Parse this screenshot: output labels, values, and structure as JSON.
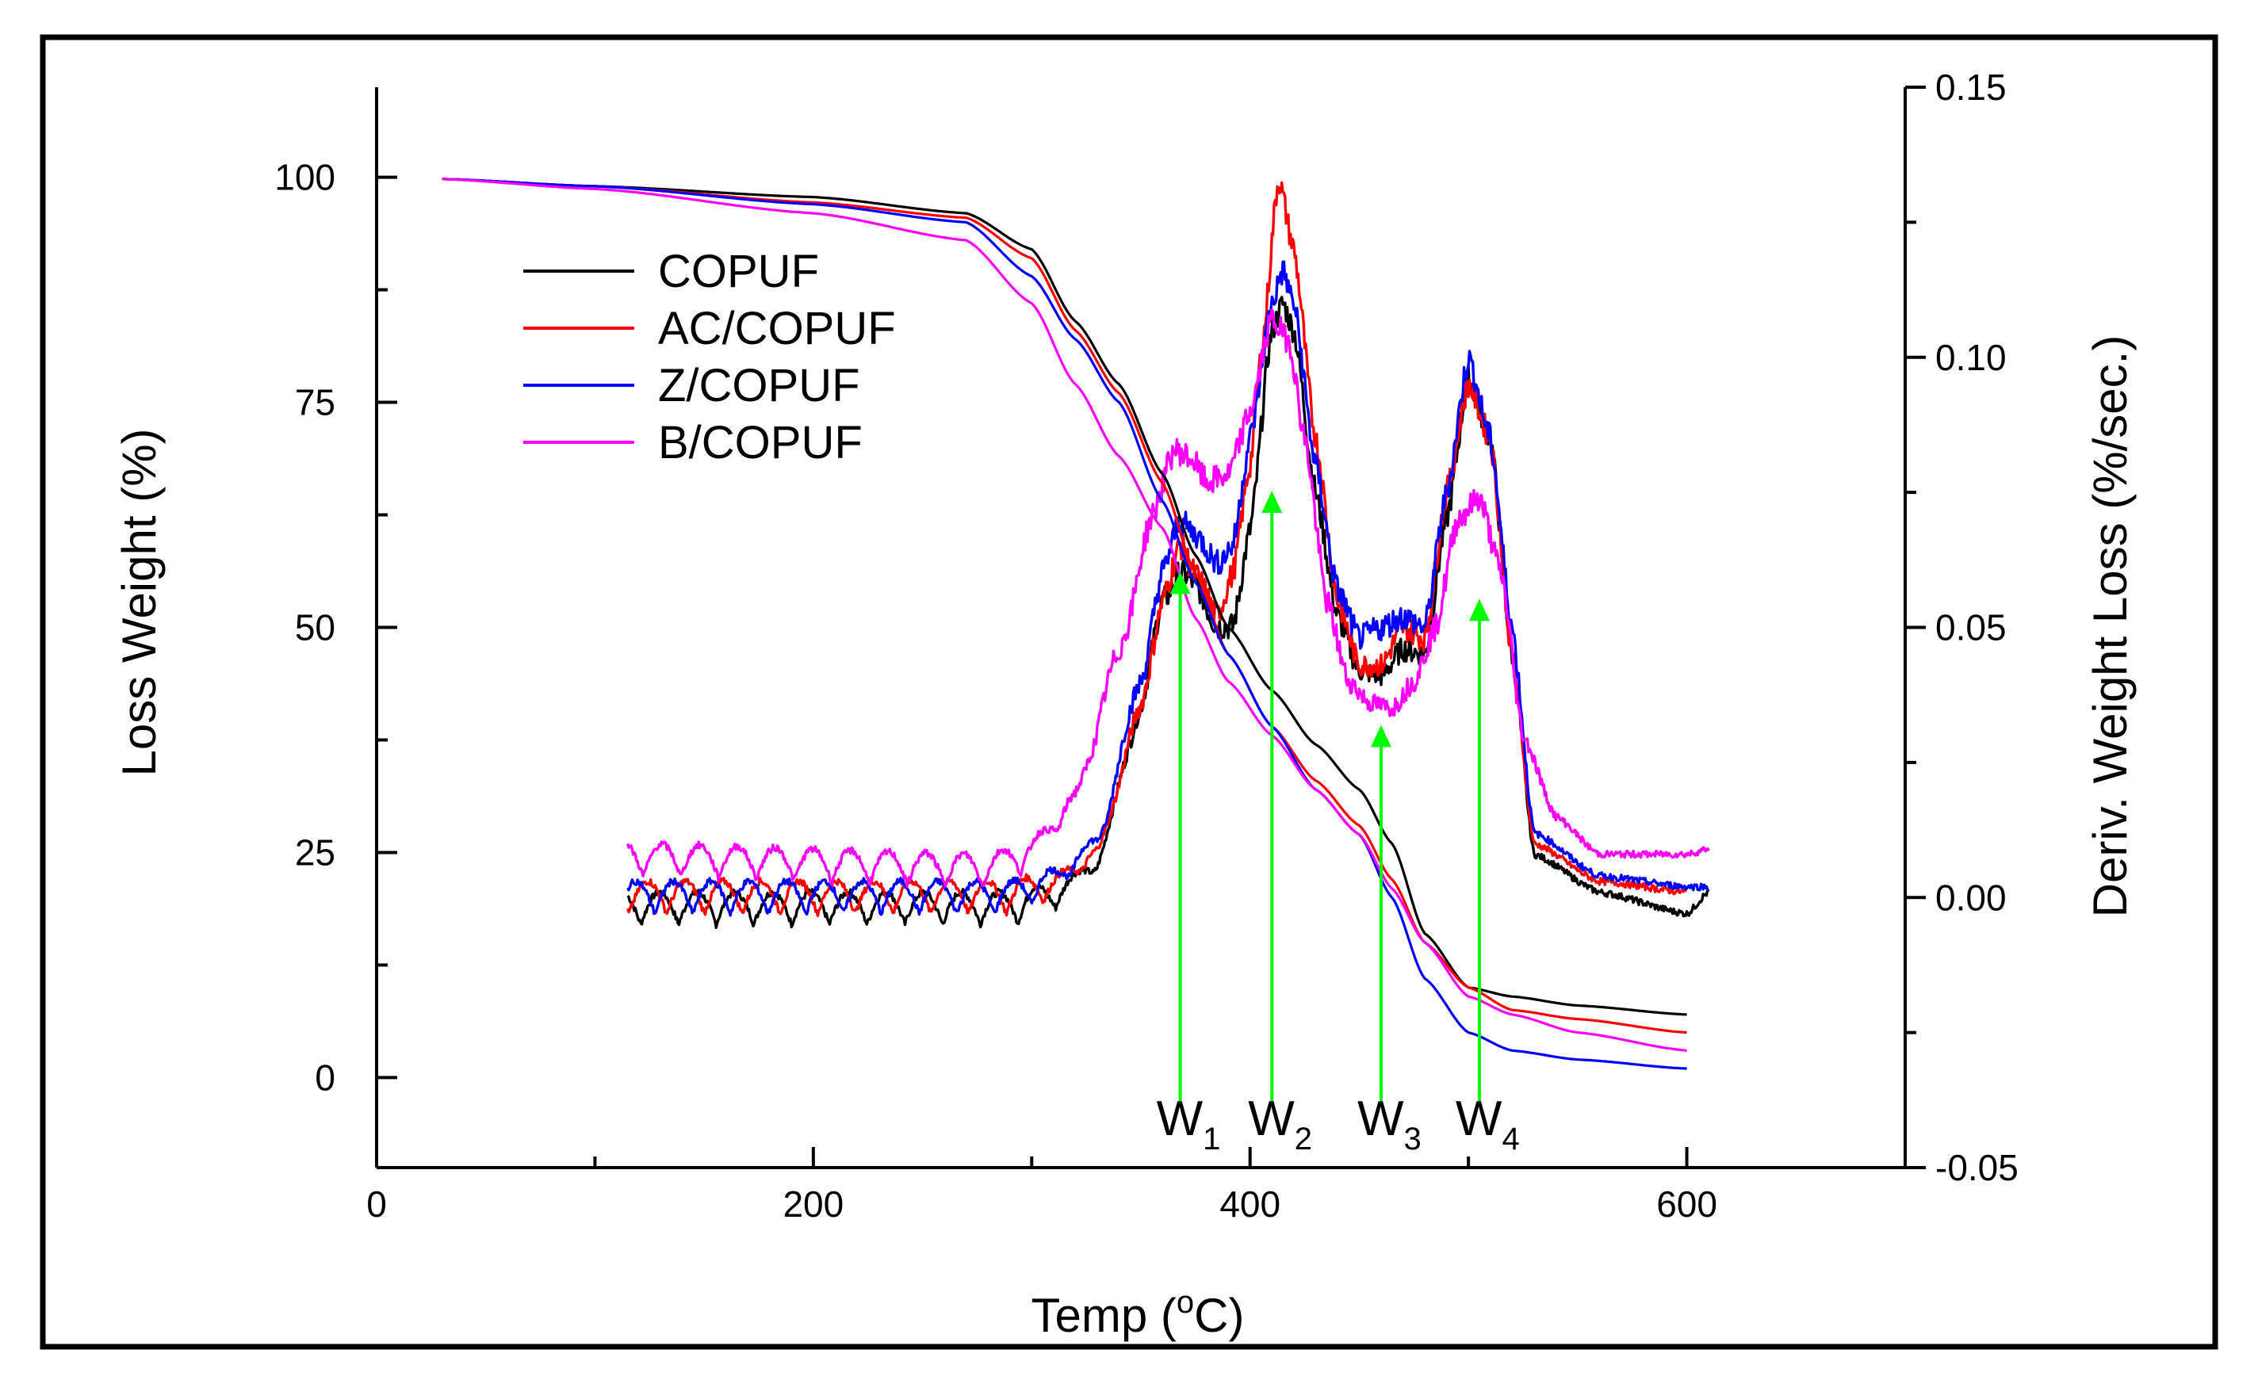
{
  "chart_data": {
    "type": "line",
    "title": "",
    "xlabel": "Temp (°C)",
    "xlabel_parts": {
      "pre": "Temp (",
      "sup": "o",
      "post": "C)"
    },
    "ylabel": "Loss Weight (%)",
    "y2label": "Deriv. Weight Loss (%/sec.)",
    "xlim": [
      0,
      700
    ],
    "ylim": [
      -10,
      110
    ],
    "y2lim": [
      -0.05,
      0.15
    ],
    "xticks": [
      0,
      200,
      400,
      600
    ],
    "xtick_labels": [
      "0",
      "200",
      "400",
      "600"
    ],
    "yticks": [
      0,
      25,
      50,
      75,
      100
    ],
    "ytick_labels": [
      "0",
      "25",
      "50",
      "75",
      "100"
    ],
    "y2ticks": [
      -0.05,
      0.0,
      0.05,
      0.1,
      0.15
    ],
    "y2tick_labels": [
      "-0.05",
      "0.00",
      "0.05",
      "0.10",
      "0.15"
    ],
    "legend": [
      "COPUF",
      "AC/COPUF",
      "Z/COPUF",
      "B/COPUF"
    ],
    "legend_position": "top-left",
    "colors": {
      "COPUF": "#000000",
      "AC/COPUF": "#ff0000",
      "Z/COPUF": "#0000ff",
      "B/COPUF": "#ff00ff",
      "arrow": "#00ff00"
    },
    "tga_series": [
      {
        "name": "COPUF",
        "x": [
          30,
          100,
          200,
          270,
          300,
          320,
          340,
          360,
          375,
          390,
          410,
          430,
          450,
          465,
          480,
          500,
          520,
          550,
          600
        ],
        "y": [
          99.8,
          99,
          97.8,
          96,
          92,
          84,
          77,
          67,
          58,
          50,
          43,
          37,
          32,
          26,
          16,
          10,
          9,
          8,
          7
        ]
      },
      {
        "name": "AC/COPUF",
        "x": [
          30,
          100,
          200,
          270,
          300,
          320,
          340,
          360,
          375,
          390,
          410,
          430,
          450,
          465,
          480,
          500,
          520,
          550,
          600
        ],
        "y": [
          99.8,
          99,
          97.2,
          95.5,
          91,
          83,
          76,
          66,
          56,
          47,
          39,
          33,
          28,
          22,
          15,
          10,
          7.5,
          6.5,
          5
        ]
      },
      {
        "name": "Z/COPUF",
        "x": [
          30,
          100,
          200,
          270,
          300,
          320,
          340,
          360,
          375,
          390,
          410,
          430,
          450,
          465,
          480,
          500,
          520,
          550,
          600
        ],
        "y": [
          99.8,
          99,
          97,
          95,
          89,
          82,
          75,
          64,
          55,
          47,
          39,
          32,
          27,
          20,
          11,
          5,
          3,
          2,
          1
        ]
      },
      {
        "name": "B/COPUF",
        "x": [
          30,
          100,
          200,
          270,
          300,
          320,
          340,
          360,
          375,
          390,
          410,
          430,
          450,
          465,
          480,
          500,
          520,
          550,
          600
        ],
        "y": [
          99.8,
          98.7,
          96,
          93,
          86,
          77,
          69,
          61,
          51,
          44,
          38,
          32,
          27,
          21,
          15,
          9,
          7,
          5,
          3
        ]
      }
    ],
    "dtg_series": [
      {
        "name": "COPUF",
        "x": [
          115,
          290,
          310,
          330,
          350,
          360,
          368,
          375,
          385,
          392,
          400,
          410,
          415,
          420,
          430,
          440,
          450,
          460,
          470,
          480,
          490,
          500,
          510,
          520,
          530,
          560,
          600,
          610
        ],
        "y": [
          -0.002,
          -0.002,
          0.0,
          0.006,
          0.035,
          0.055,
          0.06,
          0.058,
          0.05,
          0.05,
          0.068,
          0.105,
          0.11,
          0.105,
          0.075,
          0.052,
          0.042,
          0.041,
          0.046,
          0.045,
          0.07,
          0.096,
          0.085,
          0.045,
          0.008,
          0.001,
          -0.003,
          0.001
        ]
      },
      {
        "name": "AC/COPUF",
        "x": [
          115,
          290,
          310,
          330,
          350,
          360,
          368,
          375,
          385,
          392,
          400,
          405,
          413,
          420,
          430,
          440,
          450,
          460,
          470,
          480,
          490,
          500,
          510,
          520,
          530,
          560,
          600
        ],
        "y": [
          0.0,
          0.0,
          0.002,
          0.008,
          0.035,
          0.055,
          0.065,
          0.06,
          0.052,
          0.06,
          0.08,
          0.1,
          0.133,
          0.12,
          0.085,
          0.055,
          0.043,
          0.043,
          0.05,
          0.048,
          0.075,
          0.095,
          0.085,
          0.045,
          0.01,
          0.003,
          0.001
        ]
      },
      {
        "name": "Z/COPUF",
        "x": [
          115,
          290,
          310,
          330,
          350,
          360,
          368,
          375,
          385,
          392,
          400,
          410,
          415,
          420,
          430,
          440,
          450,
          460,
          470,
          480,
          490,
          500,
          510,
          520,
          530,
          560,
          600,
          610
        ],
        "y": [
          0.0,
          0.0,
          0.003,
          0.01,
          0.04,
          0.06,
          0.07,
          0.067,
          0.062,
          0.065,
          0.085,
          0.11,
          0.116,
          0.11,
          0.08,
          0.057,
          0.048,
          0.05,
          0.052,
          0.05,
          0.075,
          0.1,
          0.085,
          0.05,
          0.012,
          0.004,
          0.002,
          0.002
        ]
      },
      {
        "name": "B/COPUF",
        "x": [
          115,
          280,
          300,
          320,
          340,
          355,
          365,
          373,
          380,
          390,
          400,
          410,
          418,
          425,
          435,
          445,
          455,
          465,
          475,
          485,
          495,
          505,
          515,
          525,
          540,
          560,
          600,
          610
        ],
        "y": [
          0.007,
          0.005,
          0.008,
          0.018,
          0.045,
          0.07,
          0.083,
          0.081,
          0.077,
          0.078,
          0.09,
          0.107,
          0.103,
          0.085,
          0.055,
          0.04,
          0.036,
          0.035,
          0.04,
          0.05,
          0.07,
          0.074,
          0.06,
          0.03,
          0.015,
          0.008,
          0.008,
          0.009
        ]
      }
    ],
    "annotations": [
      {
        "label": "W",
        "sub": "1",
        "x": 368,
        "arrow_from": -3,
        "arrow_to": 56
      },
      {
        "label": "W",
        "sub": "2",
        "x": 410,
        "arrow_from": -3,
        "arrow_to": 65
      },
      {
        "label": "W",
        "sub": "3",
        "x": 460,
        "arrow_from": -3,
        "arrow_to": 39
      },
      {
        "label": "W",
        "sub": "4",
        "x": 505,
        "arrow_from": -3,
        "arrow_to": 53
      }
    ]
  }
}
